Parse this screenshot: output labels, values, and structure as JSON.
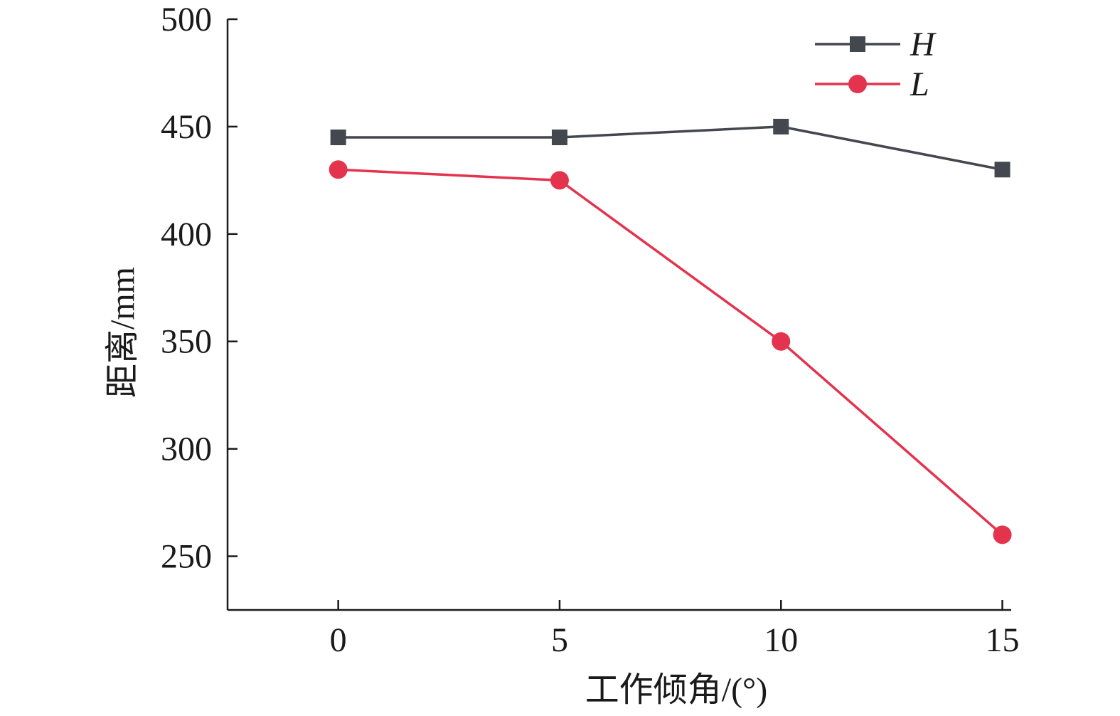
{
  "chart_data": {
    "type": "line",
    "xlabel": "工作倾角/(°)",
    "ylabel": "距离/mm",
    "x": [
      0,
      5,
      10,
      15
    ],
    "xlim": [
      -2.5,
      15.2
    ],
    "ylim": [
      225,
      500
    ],
    "xticks": [
      0,
      5,
      10,
      15
    ],
    "yticks": [
      250,
      300,
      350,
      400,
      450,
      500
    ],
    "grid": false,
    "legend_position": "top-right",
    "series": [
      {
        "name": "H",
        "marker": "square",
        "color": "#43474e",
        "values": [
          445,
          445,
          450,
          430
        ]
      },
      {
        "name": "L",
        "marker": "circle",
        "color": "#e4334d",
        "values": [
          430,
          425,
          350,
          260
        ]
      }
    ]
  }
}
